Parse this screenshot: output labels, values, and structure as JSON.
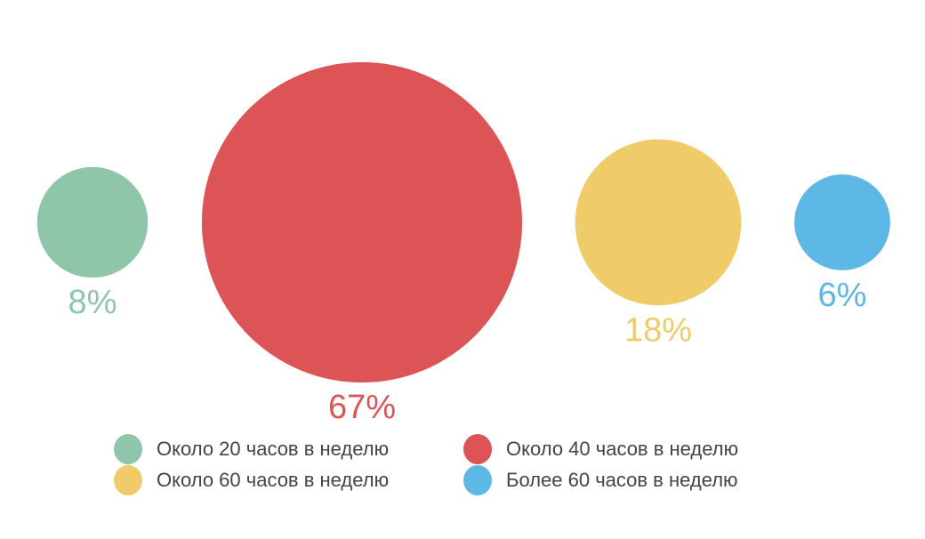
{
  "chart_data": {
    "type": "bubble",
    "title": "",
    "series": [
      {
        "name": "Около 20 часов в неделю",
        "value": 8,
        "label": "8%",
        "color": "#8fc5a9"
      },
      {
        "name": "Около 40 часов в неделю",
        "value": 67,
        "label": "67%",
        "color": "#dd5456"
      },
      {
        "name": "Около 60 часов в неделю",
        "value": 18,
        "label": "18%",
        "color": "#efcb6a"
      },
      {
        "name": "Более 60 часов в неделю",
        "value": 6,
        "label": "6%",
        "color": "#5db8e5"
      }
    ],
    "legend_position": "bottom"
  }
}
